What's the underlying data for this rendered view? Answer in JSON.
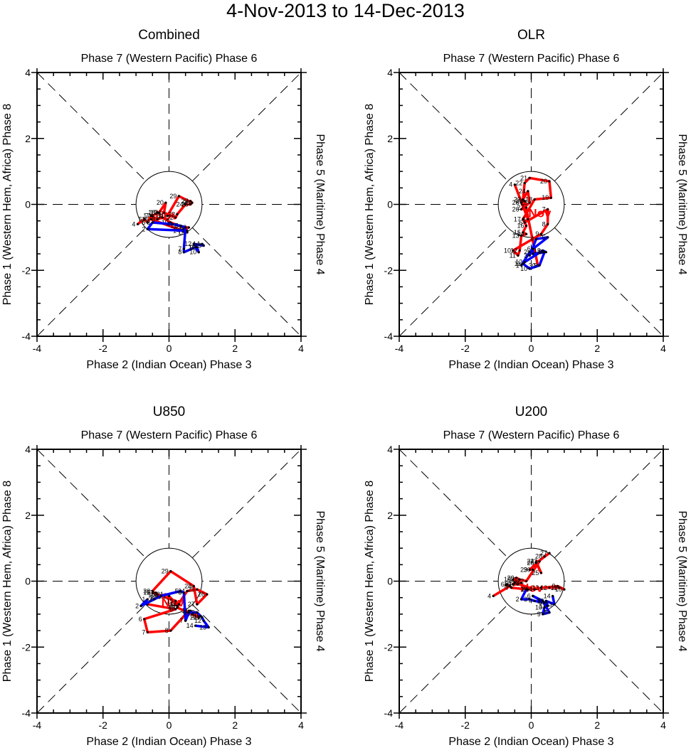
{
  "title": "4-Nov-2013 to 14-Dec-2013",
  "chart_data": [
    {
      "type": "line",
      "title": "Combined",
      "top_label": "Phase 7 (Western Pacific) Phase 6",
      "bottom_label": "Phase 2 (Indian Ocean) Phase 3",
      "left_label": "Phase 1 (Western Hem, Africa) Phase 8",
      "right_label": "Phase 5 (Maritime) Phase 4",
      "xlim": [
        -4,
        4
      ],
      "ylim": [
        -4,
        4
      ],
      "xticks": [
        "-4",
        "-2",
        "0",
        "2",
        "4"
      ],
      "yticks": [
        "-4",
        "-2",
        "0",
        "2",
        "4"
      ],
      "unit_circle_radius": 1,
      "series": [
        {
          "name": "Nov",
          "color": "#ff0000",
          "month_label": "Nov",
          "points": [
            [
              4,
              -0.95,
              -0.6
            ],
            [
              5,
              -0.75,
              -0.45
            ],
            [
              6,
              -0.65,
              -0.55
            ],
            [
              7,
              -0.55,
              -0.35
            ],
            [
              8,
              -0.35,
              -0.45
            ],
            [
              9,
              -0.2,
              -0.4
            ],
            [
              10,
              0.05,
              -0.55
            ],
            [
              11,
              0.3,
              -0.65
            ],
            [
              12,
              0.45,
              -0.7
            ],
            [
              13,
              0.6,
              -0.7
            ],
            [
              14,
              0.4,
              -0.8
            ],
            [
              15,
              0.55,
              -0.85
            ],
            [
              16,
              -0.55,
              -0.45
            ],
            [
              17,
              -0.5,
              -0.35
            ],
            [
              18,
              -0.35,
              -0.25
            ],
            [
              19,
              -0.3,
              -0.25
            ],
            [
              20,
              -0.1,
              0.05
            ],
            [
              21,
              -0.15,
              -0.25
            ],
            [
              22,
              0.2,
              -0.4
            ],
            [
              23,
              0.25,
              -0.3
            ],
            [
              24,
              0.5,
              0.0
            ],
            [
              25,
              0.65,
              0.0
            ],
            [
              26,
              0.7,
              0.05
            ],
            [
              27,
              0.65,
              0.1
            ],
            [
              28,
              0.7,
              0.05
            ],
            [
              29,
              0.3,
              0.25
            ],
            [
              30,
              -0.05,
              -0.35
            ]
          ]
        },
        {
          "name": "Dec",
          "color": "#0000ff",
          "month_label": "Dec",
          "points": [
            [
              1,
              0.55,
              -0.8
            ],
            [
              2,
              -0.65,
              -0.75
            ],
            [
              3,
              -0.5,
              -0.55
            ],
            [
              4,
              0.1,
              -0.6
            ],
            [
              5,
              0.35,
              -0.65
            ],
            [
              6,
              0.5,
              -0.7
            ],
            [
              7,
              0.45,
              -1.35
            ],
            [
              8,
              0.45,
              -1.45
            ],
            [
              9,
              0.8,
              -1.3
            ],
            [
              10,
              0.9,
              -1.45
            ],
            [
              11,
              0.85,
              -1.3
            ],
            [
              12,
              0.75,
              -1.2
            ],
            [
              13,
              1.05,
              -1.25
            ],
            [
              14,
              1.0,
              -1.2
            ]
          ]
        }
      ]
    },
    {
      "type": "line",
      "title": "OLR",
      "top_label": "Phase 7 (Western Pacific) Phase 6",
      "bottom_label": "Phase 2 (Indian Ocean) Phase 3",
      "left_label": "Phase 1 (Western Hem, Africa) Phase 8",
      "right_label": "Phase 5 (Maritime) Phase 4",
      "xlim": [
        -4,
        4
      ],
      "ylim": [
        -4,
        4
      ],
      "xticks": [
        "-4",
        "-2",
        "0",
        "2",
        "4"
      ],
      "yticks": [
        "-4",
        "-2",
        "0",
        "2",
        "4"
      ],
      "unit_circle_radius": 1,
      "series": [
        {
          "name": "Nov",
          "color": "#ff0000",
          "month_label": "Nov",
          "points": [
            [
              4,
              -0.5,
              0.6
            ],
            [
              5,
              -0.1,
              -0.45
            ],
            [
              6,
              -0.2,
              -0.55
            ],
            [
              7,
              0.5,
              -0.15
            ],
            [
              8,
              0.5,
              -0.6
            ],
            [
              9,
              0.3,
              -0.9
            ],
            [
              10,
              -0.55,
              -1.4
            ],
            [
              11,
              -0.4,
              -1.55
            ],
            [
              12,
              -0.35,
              -1.4
            ],
            [
              13,
              -0.3,
              -0.95
            ],
            [
              14,
              -0.15,
              -0.9
            ],
            [
              15,
              -0.25,
              -0.85
            ],
            [
              16,
              -0.15,
              -0.65
            ],
            [
              17,
              -0.25,
              -0.45
            ],
            [
              18,
              0.1,
              0.15
            ],
            [
              19,
              0.6,
              0.2
            ],
            [
              20,
              0.55,
              0.7
            ],
            [
              21,
              -0.05,
              0.8
            ],
            [
              22,
              -0.2,
              0.65
            ],
            [
              23,
              -0.25,
              0.15
            ],
            [
              24,
              -0.1,
              0.4
            ],
            [
              25,
              -0.05,
              0.05
            ],
            [
              26,
              -0.3,
              -0.15
            ],
            [
              27,
              -0.15,
              -0.1
            ],
            [
              28,
              -0.3,
              0.05
            ],
            [
              29,
              -0.2,
              0.1
            ],
            [
              30,
              0.2,
              -1.85
            ]
          ]
        },
        {
          "name": "Dec",
          "color": "#0000ff",
          "month_label": "Dec",
          "points": [
            [
              1,
              -0.3,
              -1.85
            ],
            [
              2,
              -0.05,
              -1.45
            ],
            [
              3,
              -0.05,
              -1.55
            ],
            [
              4,
              0.15,
              -1.05
            ],
            [
              5,
              0.5,
              -1.0
            ],
            [
              6,
              0.05,
              -1.35
            ],
            [
              7,
              0.05,
              -1.5
            ],
            [
              8,
              0.4,
              -1.45
            ],
            [
              9,
              0.25,
              -1.85
            ],
            [
              10,
              -0.05,
              -1.95
            ],
            [
              11,
              -0.25,
              -1.8
            ],
            [
              12,
              -0.2,
              -1.75
            ],
            [
              13,
              0.35,
              -1.4
            ],
            [
              14,
              0.45,
              -1.45
            ]
          ]
        }
      ]
    },
    {
      "type": "line",
      "title": "U850",
      "top_label": "Phase 7 (Western Pacific) Phase 6",
      "bottom_label": "Phase 2 (Indian Ocean) Phase 3",
      "left_label": "Phase 1 (Western Hem, Africa) Phase 8",
      "right_label": "Phase 5 (Maritime) Phase 4",
      "xlim": [
        -4,
        4
      ],
      "ylim": [
        -4,
        4
      ],
      "xticks": [
        "-4",
        "-2",
        "0",
        "2",
        "4"
      ],
      "yticks": [
        "-4",
        "-2",
        "0",
        "2",
        "4"
      ],
      "unit_circle_radius": 1,
      "series": [
        {
          "name": "Nov",
          "color": "#ff0000",
          "month_label": "Nov",
          "points": [
            [
              4,
              -0.65,
              -0.7
            ],
            [
              5,
              0.2,
              -0.85
            ],
            [
              6,
              -0.75,
              -1.15
            ],
            [
              7,
              -0.65,
              -1.55
            ],
            [
              8,
              0.05,
              -1.5
            ],
            [
              9,
              0.6,
              -0.9
            ],
            [
              10,
              0.7,
              -1.0
            ],
            [
              11,
              0.65,
              -0.9
            ],
            [
              12,
              0.9,
              -1.1
            ],
            [
              13,
              0.25,
              -0.8
            ],
            [
              14,
              0.3,
              -0.7
            ],
            [
              15,
              0.2,
              -0.6
            ],
            [
              16,
              -0.5,
              -0.35
            ],
            [
              17,
              -0.4,
              -0.35
            ],
            [
              18,
              -0.35,
              -0.4
            ],
            [
              19,
              -0.3,
              -0.5
            ],
            [
              20,
              -0.25,
              -0.45
            ],
            [
              21,
              -0.1,
              -0.4
            ],
            [
              22,
              0.0,
              -0.45
            ],
            [
              23,
              0.25,
              -0.75
            ],
            [
              24,
              0.55,
              -0.3
            ],
            [
              25,
              0.85,
              -0.25
            ],
            [
              26,
              1.15,
              -0.4
            ],
            [
              27,
              0.85,
              -0.7
            ],
            [
              28,
              0.75,
              -0.15
            ],
            [
              29,
              0.05,
              0.3
            ],
            [
              30,
              -0.5,
              -0.3
            ]
          ]
        },
        {
          "name": "Dec",
          "color": "#0000ff",
          "month_label": "Dec",
          "points": [
            [
              1,
              -0.65,
              -0.55
            ],
            [
              2,
              -0.85,
              -0.75
            ],
            [
              3,
              -0.45,
              -0.55
            ],
            [
              4,
              -0.25,
              -0.45
            ],
            [
              5,
              0.35,
              -0.3
            ],
            [
              6,
              0.45,
              -0.35
            ],
            [
              7,
              0.5,
              -1.2
            ],
            [
              8,
              0.6,
              -0.95
            ],
            [
              9,
              0.85,
              -0.95
            ],
            [
              10,
              0.95,
              -1.05
            ],
            [
              11,
              1.0,
              -1.1
            ],
            [
              12,
              1.05,
              -1.2
            ],
            [
              13,
              1.2,
              -1.4
            ],
            [
              14,
              0.8,
              -1.35
            ]
          ]
        }
      ]
    },
    {
      "type": "line",
      "title": "U200",
      "top_label": "Phase 7 (Western Pacific) Phase 6",
      "bottom_label": "Phase 2 (Indian Ocean) Phase 3",
      "left_label": "Phase 1 (Western Hem, Africa) Phase 8",
      "right_label": "Phase 5 (Maritime) Phase 4",
      "xlim": [
        -4,
        4
      ],
      "ylim": [
        -4,
        4
      ],
      "xticks": [
        "-4",
        "-2",
        "0",
        "2",
        "4"
      ],
      "yticks": [
        "-4",
        "-2",
        "0",
        "2",
        "4"
      ],
      "unit_circle_radius": 1,
      "series": [
        {
          "name": "Nov",
          "color": "#ff0000",
          "month_label": "Nov",
          "points": [
            [
              4,
              -1.15,
              -0.45
            ],
            [
              5,
              -0.65,
              -0.15
            ],
            [
              6,
              -0.75,
              -0.1
            ],
            [
              7,
              -0.6,
              -0.2
            ],
            [
              8,
              -0.1,
              -0.25
            ],
            [
              9,
              0.8,
              -0.15
            ],
            [
              10,
              1.0,
              -0.25
            ],
            [
              11,
              0.85,
              -0.2
            ],
            [
              12,
              0.55,
              -0.2
            ],
            [
              13,
              0.3,
              -0.2
            ],
            [
              14,
              0.1,
              -0.25
            ],
            [
              15,
              -0.5,
              -0.05
            ],
            [
              16,
              -0.55,
              -0.1
            ],
            [
              17,
              -0.4,
              -0.1
            ],
            [
              18,
              -0.3,
              -0.05
            ],
            [
              19,
              -0.55,
              0.05
            ],
            [
              20,
              -0.45,
              0.1
            ],
            [
              21,
              -0.35,
              0.05
            ],
            [
              22,
              -0.15,
              0.0
            ],
            [
              23,
              0.25,
              0.6
            ],
            [
              24,
              0.15,
              0.6
            ],
            [
              25,
              0.3,
              0.25
            ],
            [
              26,
              0.15,
              0.55
            ],
            [
              27,
              0.55,
              0.85
            ],
            [
              28,
              0.4,
              0.75
            ],
            [
              29,
              -0.05,
              0.35
            ],
            [
              30,
              0.05,
              0.35
            ]
          ]
        },
        {
          "name": "Dec",
          "color": "#0000ff",
          "month_label": "Dec",
          "points": [
            [
              1,
              -0.15,
              -0.25
            ],
            [
              2,
              -0.3,
              -0.55
            ],
            [
              3,
              -0.05,
              -0.55
            ],
            [
              4,
              0.1,
              -0.6
            ],
            [
              5,
              0.4,
              -0.65
            ],
            [
              6,
              0.05,
              -0.45
            ],
            [
              7,
              0.35,
              -0.6
            ],
            [
              8,
              0.55,
              -0.95
            ],
            [
              9,
              0.35,
              -1.0
            ],
            [
              10,
              0.4,
              -0.8
            ],
            [
              11,
              0.5,
              -0.75
            ],
            [
              12,
              0.45,
              -0.6
            ],
            [
              13,
              0.7,
              -0.7
            ],
            [
              14,
              0.65,
              -0.45
            ]
          ]
        }
      ]
    }
  ]
}
